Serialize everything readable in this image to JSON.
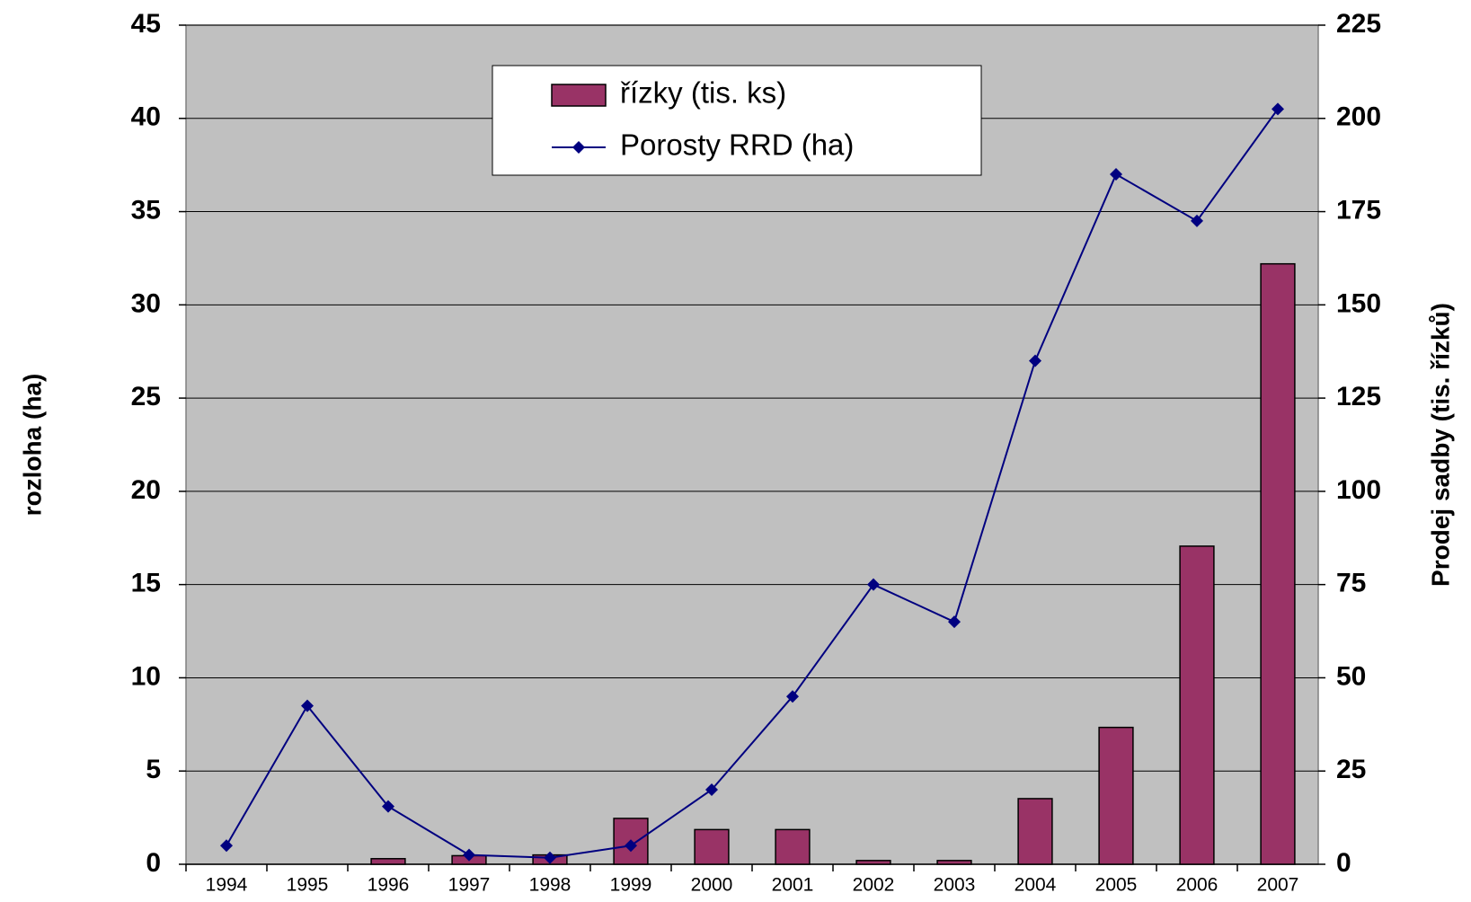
{
  "chart_data": {
    "type": "bar",
    "categories": [
      "1994",
      "1995",
      "1996",
      "1997",
      "1998",
      "1999",
      "2000",
      "2001",
      "2002",
      "2003",
      "2004",
      "2005",
      "2006",
      "2007"
    ],
    "series": [
      {
        "name": "řízky (tis. ks)",
        "type": "bar",
        "axis": "y2",
        "color": "#993366",
        "values": [
          0,
          0,
          1.5,
          2.3,
          2.5,
          12.3,
          9.3,
          9.3,
          1,
          1,
          17.6,
          36.7,
          85.3,
          161
        ]
      },
      {
        "name": "Porosty RRD (ha)",
        "type": "line",
        "axis": "y",
        "color": "#000080",
        "values": [
          1.0,
          8.5,
          3.1,
          0.5,
          0.35,
          1.0,
          4.0,
          9.0,
          15,
          13,
          27,
          37,
          34.5,
          40.5
        ]
      }
    ],
    "ylabel": "rozloha (ha)",
    "y2label": "Prodej sadby (tis. řízků)",
    "ylim": [
      0,
      45
    ],
    "yticks": [
      0,
      5,
      10,
      15,
      20,
      25,
      30,
      35,
      40,
      45
    ],
    "y2lim": [
      0,
      225
    ],
    "y2ticks": [
      0,
      25,
      50,
      75,
      100,
      125,
      150,
      175,
      200,
      225
    ],
    "grid": true,
    "legend": "top-center",
    "background": "#c0c0c0"
  }
}
